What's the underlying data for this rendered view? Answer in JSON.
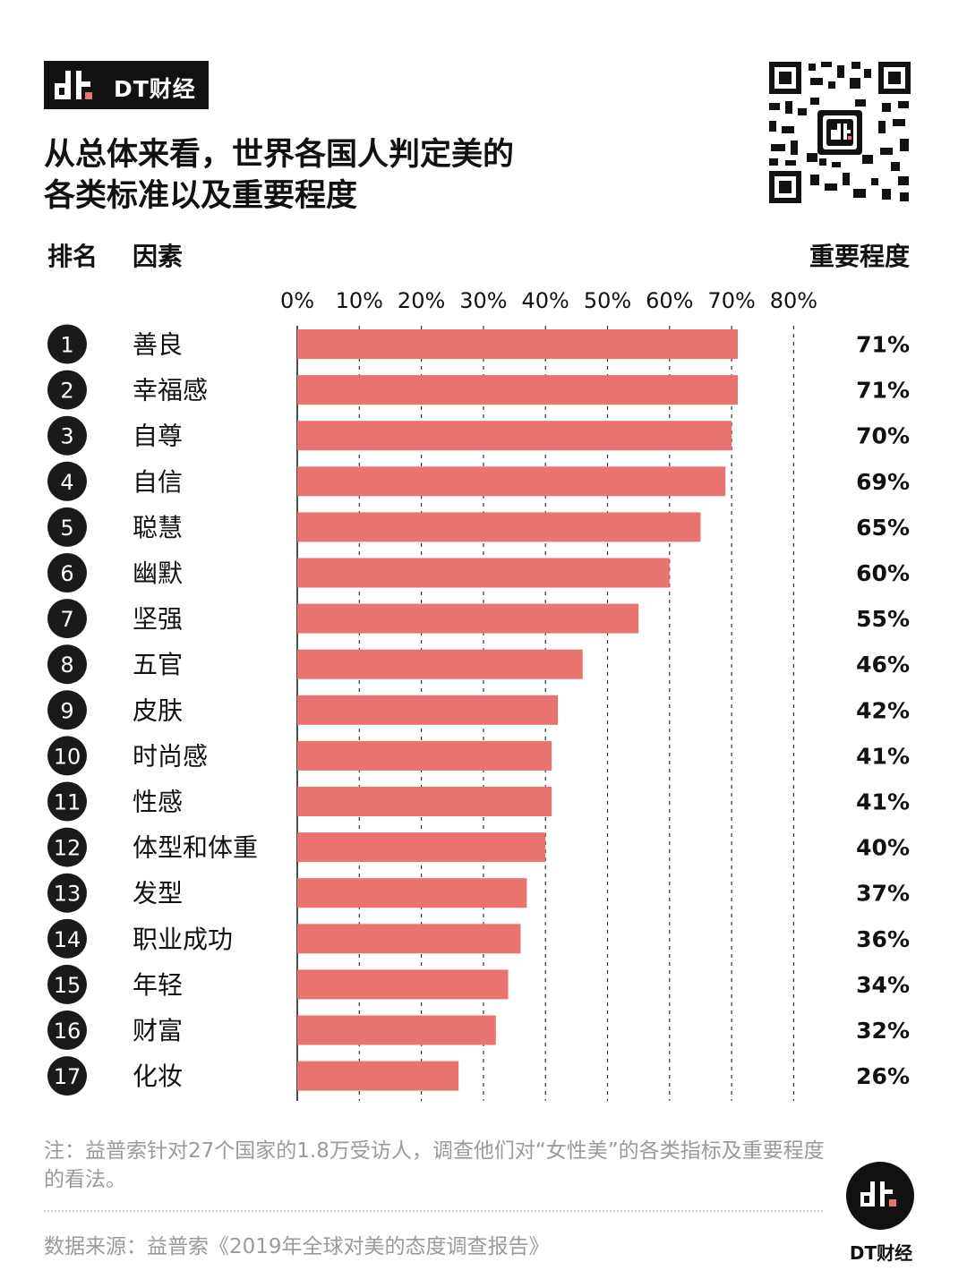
{
  "brand": {
    "name": "DT财经",
    "logo_icon": "dt-logo-icon"
  },
  "title": {
    "line1": "从总体来看，世界各国人判定美的",
    "line2": "各类标准以及重要程度"
  },
  "headers": {
    "rank": "排名",
    "factor": "因素",
    "importance": "重要程度"
  },
  "qr_icon": "qr-code-icon",
  "colors": {
    "bar": "#E8736F",
    "rank_circle": "#1a1a1a",
    "grid": "#333333",
    "text_muted": "#9a9a9a"
  },
  "chart_data": {
    "type": "bar",
    "orientation": "horizontal",
    "x_ticks": [
      "0%",
      "10%",
      "20%",
      "30%",
      "40%",
      "50%",
      "60%",
      "70%",
      "80%"
    ],
    "xlim": [
      0,
      80
    ],
    "grid": true,
    "ranks": [
      "1",
      "2",
      "3",
      "4",
      "5",
      "6",
      "7",
      "8",
      "9",
      "10",
      "11",
      "12",
      "13",
      "14",
      "15",
      "16",
      "17"
    ],
    "categories": [
      "善良",
      "幸福感",
      "自尊",
      "自信",
      "聪慧",
      "幽默",
      "坚强",
      "五官",
      "皮肤",
      "时尚感",
      "性感",
      "体型和体重",
      "发型",
      "职业成功",
      "年轻",
      "财富",
      "化妆"
    ],
    "values": [
      71,
      71,
      70,
      69,
      65,
      60,
      55,
      46,
      42,
      41,
      41,
      40,
      37,
      36,
      34,
      32,
      26
    ],
    "value_labels": [
      "71%",
      "71%",
      "70%",
      "69%",
      "65%",
      "60%",
      "55%",
      "46%",
      "42%",
      "41%",
      "41%",
      "40%",
      "37%",
      "36%",
      "34%",
      "32%",
      "26%"
    ]
  },
  "footnote": "注：益普索针对27个国家的1.8万受访人，调查他们对“女性美”的各类指标及重要程度的看法。",
  "source": "数据来源：益普索《2019年全球对美的态度调查报告》",
  "footer_brand": "DT财经"
}
